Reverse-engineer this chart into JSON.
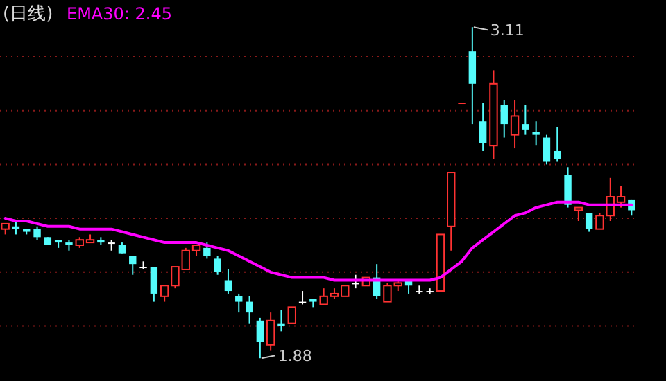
{
  "chart_data": {
    "type": "candlestick",
    "title": "(日线)",
    "categories": [
      null,
      null,
      null,
      null,
      null,
      null,
      null,
      null,
      null,
      null,
      null,
      null,
      null,
      null,
      null,
      null,
      null,
      null,
      null,
      null,
      null,
      null,
      null,
      null,
      null,
      null,
      null,
      null,
      null,
      null,
      null,
      null,
      null,
      null,
      null,
      null,
      null,
      null,
      null,
      null,
      null,
      null,
      null,
      null,
      null,
      null,
      null,
      null,
      null,
      null,
      null,
      null,
      null,
      null,
      null,
      null,
      null,
      null,
      null,
      null
    ],
    "ohlc": [
      [
        2.36,
        2.38,
        2.34,
        2.38
      ],
      [
        2.37,
        2.39,
        2.34,
        2.36
      ],
      [
        2.36,
        2.36,
        2.34,
        2.35
      ],
      [
        2.36,
        2.37,
        2.32,
        2.33
      ],
      [
        2.33,
        2.33,
        2.3,
        2.3
      ],
      [
        2.32,
        2.32,
        2.29,
        2.31
      ],
      [
        2.31,
        2.32,
        2.28,
        2.3
      ],
      [
        2.3,
        2.33,
        2.29,
        2.32
      ],
      [
        2.31,
        2.34,
        2.31,
        2.32
      ],
      [
        2.32,
        2.33,
        2.3,
        2.31
      ],
      [
        2.31,
        2.32,
        2.28,
        2.31
      ],
      [
        2.3,
        2.31,
        2.27,
        2.27
      ],
      [
        2.26,
        2.26,
        2.19,
        2.23
      ],
      [
        2.22,
        2.24,
        2.21,
        2.22
      ],
      [
        2.22,
        2.22,
        2.09,
        2.12
      ],
      [
        2.11,
        2.15,
        2.09,
        2.15
      ],
      [
        2.15,
        2.22,
        2.14,
        2.22
      ],
      [
        2.21,
        2.29,
        2.21,
        2.28
      ],
      [
        2.28,
        2.3,
        2.26,
        2.3
      ],
      [
        2.29,
        2.31,
        2.25,
        2.26
      ],
      [
        2.25,
        2.26,
        2.19,
        2.2
      ],
      [
        2.17,
        2.21,
        2.12,
        2.13
      ],
      [
        2.11,
        2.12,
        2.05,
        2.09
      ],
      [
        2.09,
        2.11,
        2.01,
        2.05
      ],
      [
        2.02,
        2.03,
        1.88,
        1.94
      ],
      [
        1.93,
        2.05,
        1.91,
        2.02
      ],
      [
        2.01,
        2.06,
        1.98,
        2.0
      ],
      [
        2.01,
        2.07,
        2.01,
        2.07
      ],
      [
        2.09,
        2.13,
        2.08,
        2.09
      ],
      [
        2.1,
        2.1,
        2.07,
        2.09
      ],
      [
        2.08,
        2.14,
        2.08,
        2.11
      ],
      [
        2.11,
        2.14,
        2.1,
        2.12
      ],
      [
        2.11,
        2.15,
        2.11,
        2.15
      ],
      [
        2.16,
        2.19,
        2.14,
        2.16
      ],
      [
        2.15,
        2.18,
        2.15,
        2.18
      ],
      [
        2.18,
        2.23,
        2.1,
        2.11
      ],
      [
        2.09,
        2.16,
        2.09,
        2.15
      ],
      [
        2.15,
        2.17,
        2.13,
        2.16
      ],
      [
        2.17,
        2.17,
        2.12,
        2.15
      ],
      [
        2.13,
        2.15,
        2.12,
        2.13
      ],
      [
        2.13,
        2.14,
        2.12,
        2.13
      ],
      [
        2.13,
        2.34,
        2.13,
        2.34
      ],
      [
        2.37,
        2.57,
        2.28,
        2.57
      ],
      [
        2.83,
        2.83,
        2.83,
        2.83
      ],
      [
        3.02,
        3.11,
        2.75,
        2.9
      ],
      [
        2.76,
        2.83,
        2.65,
        2.68
      ],
      [
        2.67,
        2.95,
        2.62,
        2.9
      ],
      [
        2.82,
        2.84,
        2.7,
        2.75
      ],
      [
        2.71,
        2.84,
        2.66,
        2.78
      ],
      [
        2.75,
        2.82,
        2.71,
        2.73
      ],
      [
        2.72,
        2.76,
        2.67,
        2.71
      ],
      [
        2.7,
        2.71,
        2.6,
        2.61
      ],
      [
        2.65,
        2.74,
        2.61,
        2.62
      ],
      [
        2.56,
        2.59,
        2.44,
        2.45
      ],
      [
        2.43,
        2.44,
        2.39,
        2.44
      ],
      [
        2.42,
        2.42,
        2.35,
        2.36
      ],
      [
        2.36,
        2.42,
        2.36,
        2.41
      ],
      [
        2.41,
        2.55,
        2.39,
        2.48
      ],
      [
        2.46,
        2.52,
        2.44,
        2.48
      ],
      [
        2.47,
        2.47,
        2.41,
        2.43
      ]
    ],
    "colors": [
      "#ff3232",
      "#54fcfc",
      "#54fcfc",
      "#54fcfc",
      "#54fcfc",
      "#54fcfc",
      "#54fcfc",
      "#ff3232",
      "#ff3232",
      "#54fcfc",
      "#ffffff",
      "#54fcfc",
      "#54fcfc",
      "#ffffff",
      "#54fcfc",
      "#ff3232",
      "#ff3232",
      "#ff3232",
      "#ff3232",
      "#54fcfc",
      "#54fcfc",
      "#54fcfc",
      "#54fcfc",
      "#54fcfc",
      "#54fcfc",
      "#ff3232",
      "#54fcfc",
      "#ff3232",
      "#ffffff",
      "#54fcfc",
      "#ff3232",
      "#ff3232",
      "#ff3232",
      "#ffffff",
      "#ff3232",
      "#54fcfc",
      "#ff3232",
      "#ff3232",
      "#54fcfc",
      "#ffffff",
      "#ffffff",
      "#ff3232",
      "#ff3232",
      "#ff3232",
      "#54fcfc",
      "#54fcfc",
      "#ff3232",
      "#54fcfc",
      "#ff3232",
      "#54fcfc",
      "#54fcfc",
      "#54fcfc",
      "#54fcfc",
      "#54fcfc",
      "#ff3232",
      "#54fcfc",
      "#ff3232",
      "#ff3232",
      "#ff3232",
      "#54fcfc"
    ],
    "series": [
      {
        "type": "line",
        "name": "EMA30: 2.45",
        "color": "#ff00ff",
        "values": [
          2.4,
          2.39,
          2.39,
          2.38,
          2.37,
          2.37,
          2.37,
          2.36,
          2.36,
          2.36,
          2.36,
          2.35,
          2.34,
          2.33,
          2.32,
          2.31,
          2.31,
          2.31,
          2.31,
          2.3,
          2.29,
          2.28,
          2.26,
          2.24,
          2.22,
          2.2,
          2.19,
          2.18,
          2.18,
          2.18,
          2.18,
          2.17,
          2.17,
          2.17,
          2.17,
          2.17,
          2.17,
          2.17,
          2.17,
          2.17,
          2.17,
          2.18,
          2.21,
          2.24,
          2.29,
          2.32,
          2.35,
          2.38,
          2.41,
          2.42,
          2.44,
          2.45,
          2.46,
          2.46,
          2.46,
          2.45,
          2.45,
          2.45,
          2.45,
          2.45
        ]
      }
    ],
    "yticks": [
      {
        "value": 2.0,
        "label": null
      },
      {
        "value": 2.2,
        "label": null
      },
      {
        "value": 2.4,
        "label": null
      },
      {
        "value": 2.6,
        "label": null
      },
      {
        "value": 2.8,
        "label": null
      },
      {
        "value": 3.0,
        "label": null
      }
    ],
    "grid": "y",
    "annotations": [
      "3.11",
      "1.88"
    ]
  }
}
